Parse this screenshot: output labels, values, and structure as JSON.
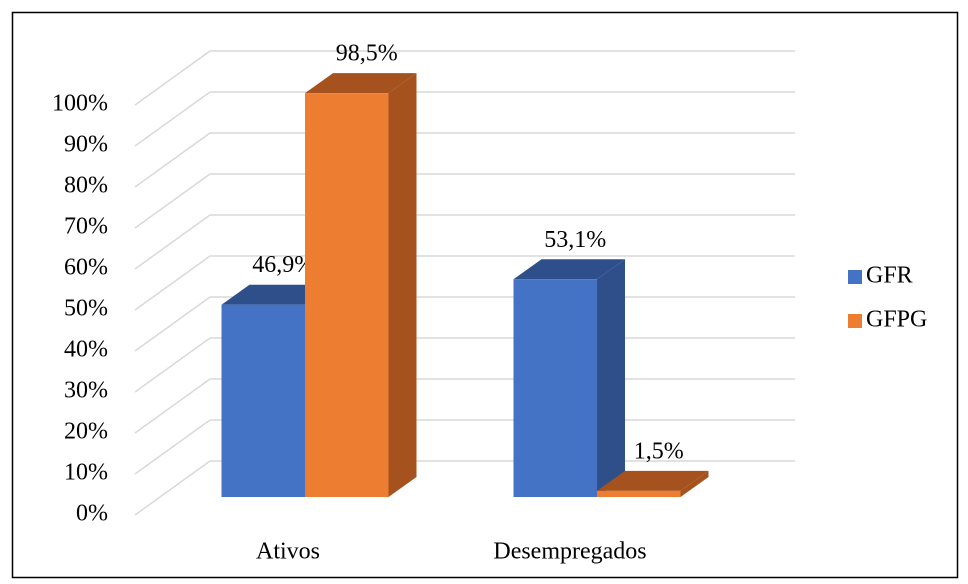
{
  "chart_data": {
    "type": "bar3d",
    "categories": [
      "Ativos",
      "Desempregados"
    ],
    "series": [
      {
        "name": "GFR",
        "color": "#4472c4",
        "side": "#2f4f8a",
        "values": [
          46.9,
          53.1
        ],
        "value_labels": [
          "46,9%",
          "53,1%"
        ]
      },
      {
        "name": "GFPG",
        "color": "#ed7d31",
        "side": "#a5521f",
        "values": [
          98.5,
          1.5
        ],
        "value_labels": [
          "98,5%",
          "1,5%"
        ]
      }
    ],
    "ylim": [
      0,
      100
    ],
    "yticks": [
      {
        "value": 0,
        "label": "0%"
      },
      {
        "value": 10,
        "label": "10%"
      },
      {
        "value": 20,
        "label": "20%"
      },
      {
        "value": 30,
        "label": "30%"
      },
      {
        "value": 40,
        "label": "40%"
      },
      {
        "value": 50,
        "label": "50%"
      },
      {
        "value": 60,
        "label": "60%"
      },
      {
        "value": 70,
        "label": "70%"
      },
      {
        "value": 80,
        "label": "80%"
      },
      {
        "value": 90,
        "label": "90%"
      },
      {
        "value": 100,
        "label": "100%"
      }
    ],
    "grid": true,
    "legend": "right"
  }
}
